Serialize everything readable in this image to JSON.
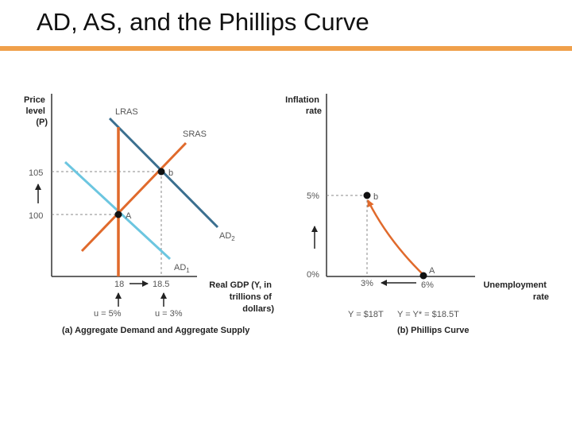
{
  "slide": {
    "title": "AD, AS, and the Phillips Curve"
  },
  "colors": {
    "lras": "#e06a2c",
    "sras": "#e06a2c",
    "ad2": "#3b6f8f",
    "ad1": "#6cc6e0",
    "phillips": "#e06a2c",
    "accent_rule": "#f0a04b"
  },
  "panel_a": {
    "y_label": [
      "Price",
      "level",
      "(P)"
    ],
    "lras": "LRAS",
    "sras": "SRAS",
    "ad2": "AD",
    "ad2_sub": "2",
    "ad1": "AD",
    "ad1_sub": "1",
    "point_b": "b",
    "point_a": "A",
    "tick_105": "105",
    "tick_100": "100",
    "tick_18": "18",
    "tick_185": "18.5",
    "x_label": [
      "Real GDP (Y, in",
      "trillions of",
      "dollars)"
    ],
    "u_left": "u = 5%",
    "u_right": "u = 3%",
    "caption": "(a) Aggregate Demand and Aggregate Supply"
  },
  "panel_b": {
    "y_label": [
      "Inflation",
      "rate"
    ],
    "tick_5": "5%",
    "tick_0": "0%",
    "point_b": "b",
    "point_a": "A",
    "tick_3": "3%",
    "tick_6": "6%",
    "x_label": [
      "Unemployment",
      "rate"
    ],
    "y_left": "Y = $18T",
    "y_right": "Y = Y* = $18.5T",
    "caption": "(b) Phillips Curve"
  }
}
